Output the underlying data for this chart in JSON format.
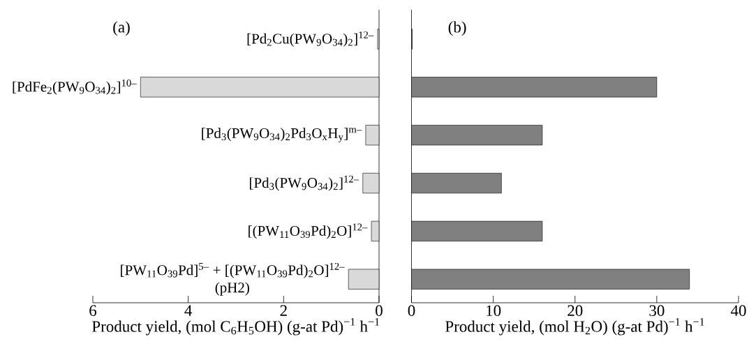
{
  "chart_data": [
    {
      "type": "bar",
      "orientation": "horizontal",
      "title": "(a)",
      "categories": [
        "[Pd$_{2}$Cu(PW$_{9}$O$_{34}$)$_{2}$]$^{12–}$",
        "[PdFe$_{2}$(PW$_{9}$O$_{34}$)$_{2}$]$^{10–}$",
        "[Pd$_{3}$(PW$_{9}$O$_{34}$)$_{2}$Pd$_{3}$O$_{x}$H$_{y}$]$^{m–}$",
        "[Pd$_{3}$(PW$_{9}$O$_{34}$)$_{2}$]$^{12–}$",
        "[(PW$_{11}$O$_{39}$Pd)$_{2}$O]$^{12–}$",
        "[PW$_{11}$O$_{39}$Pd]$^{5–}$ + [(PW$_{11}$O$_{39}$Pd)$_{2}$O]$^{12–}$ (pH2)"
      ],
      "values": [
        0.03,
        5.0,
        0.28,
        0.34,
        0.16,
        0.64
      ],
      "color": "#d9d9d9",
      "xlim": [
        6,
        0
      ],
      "xticks": [
        6,
        4,
        2,
        0
      ],
      "xlabel": "Product yield, (mol C$_{6}$H$_{5}$OH) (g-at Pd)$^{−1}$ h$^{−1}$"
    },
    {
      "type": "bar",
      "orientation": "horizontal",
      "title": "(b)",
      "categories": [
        null,
        null,
        null,
        null,
        null,
        null
      ],
      "values": [
        0.1,
        30,
        16,
        11,
        16,
        34
      ],
      "color": "#808080",
      "xlim": [
        0,
        40
      ],
      "xticks": [
        0,
        10,
        20,
        30,
        40
      ],
      "xlabel": "Product yield, (mol H$_{2}$O) (g-at Pd)$^{−1}$ h$^{−1}$"
    }
  ]
}
